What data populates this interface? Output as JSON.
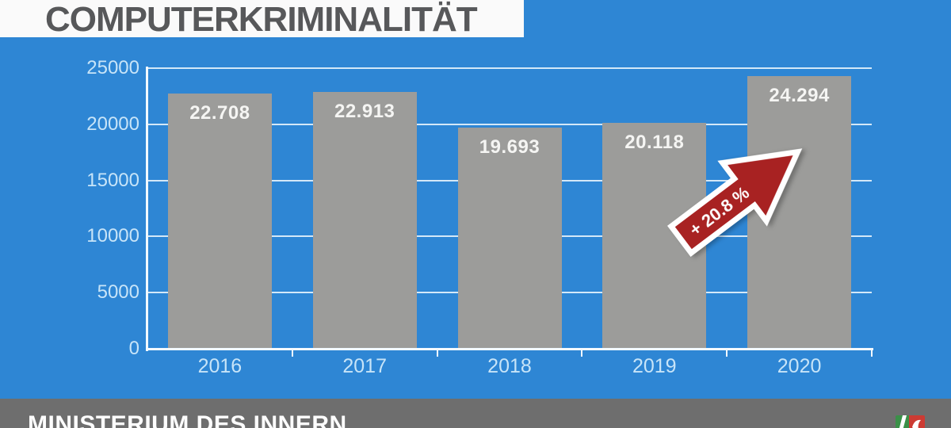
{
  "title": "COMPUTERKRIMINALITÄT",
  "footer": {
    "label": "MINISTERIUM DES INNERN",
    "logo": "nrw-coat-of-arms"
  },
  "chart_data": {
    "type": "bar",
    "categories": [
      "2016",
      "2017",
      "2018",
      "2019",
      "2020"
    ],
    "values": [
      22708,
      22913,
      19693,
      20118,
      24294
    ],
    "value_labels": [
      "22.708",
      "22.913",
      "19.693",
      "20.118",
      "24.294"
    ],
    "title": "COMPUTERKRIMINALITÄT",
    "xlabel": "",
    "ylabel": "",
    "ylim": [
      0,
      25000
    ],
    "yticks": [
      0,
      5000,
      10000,
      15000,
      20000,
      25000
    ],
    "ytick_labels": [
      "0",
      "5000",
      "10000",
      "15000",
      "20000",
      "25000"
    ],
    "grid": true,
    "legend": false,
    "annotation": {
      "text": "+ 20.8 %"
    }
  },
  "colors": {
    "bg_blue": "#2E86D4",
    "banner_bg": "#FAFAFA",
    "title_text": "#57585A",
    "bar_gray": "#9C9C9A",
    "grid_line": "#E6F3FC",
    "axis_line": "#F2F9FF",
    "tick_label": "#C7E4F8",
    "value_label": "#F5F5F3",
    "arrow_red": "#A82222",
    "arrow_outline": "#FFFFFF",
    "footer_bg": "#6E6E6E",
    "footer_text": "#FDFDFD",
    "logo_green": "#3A9048",
    "logo_red": "#CC3B33"
  }
}
